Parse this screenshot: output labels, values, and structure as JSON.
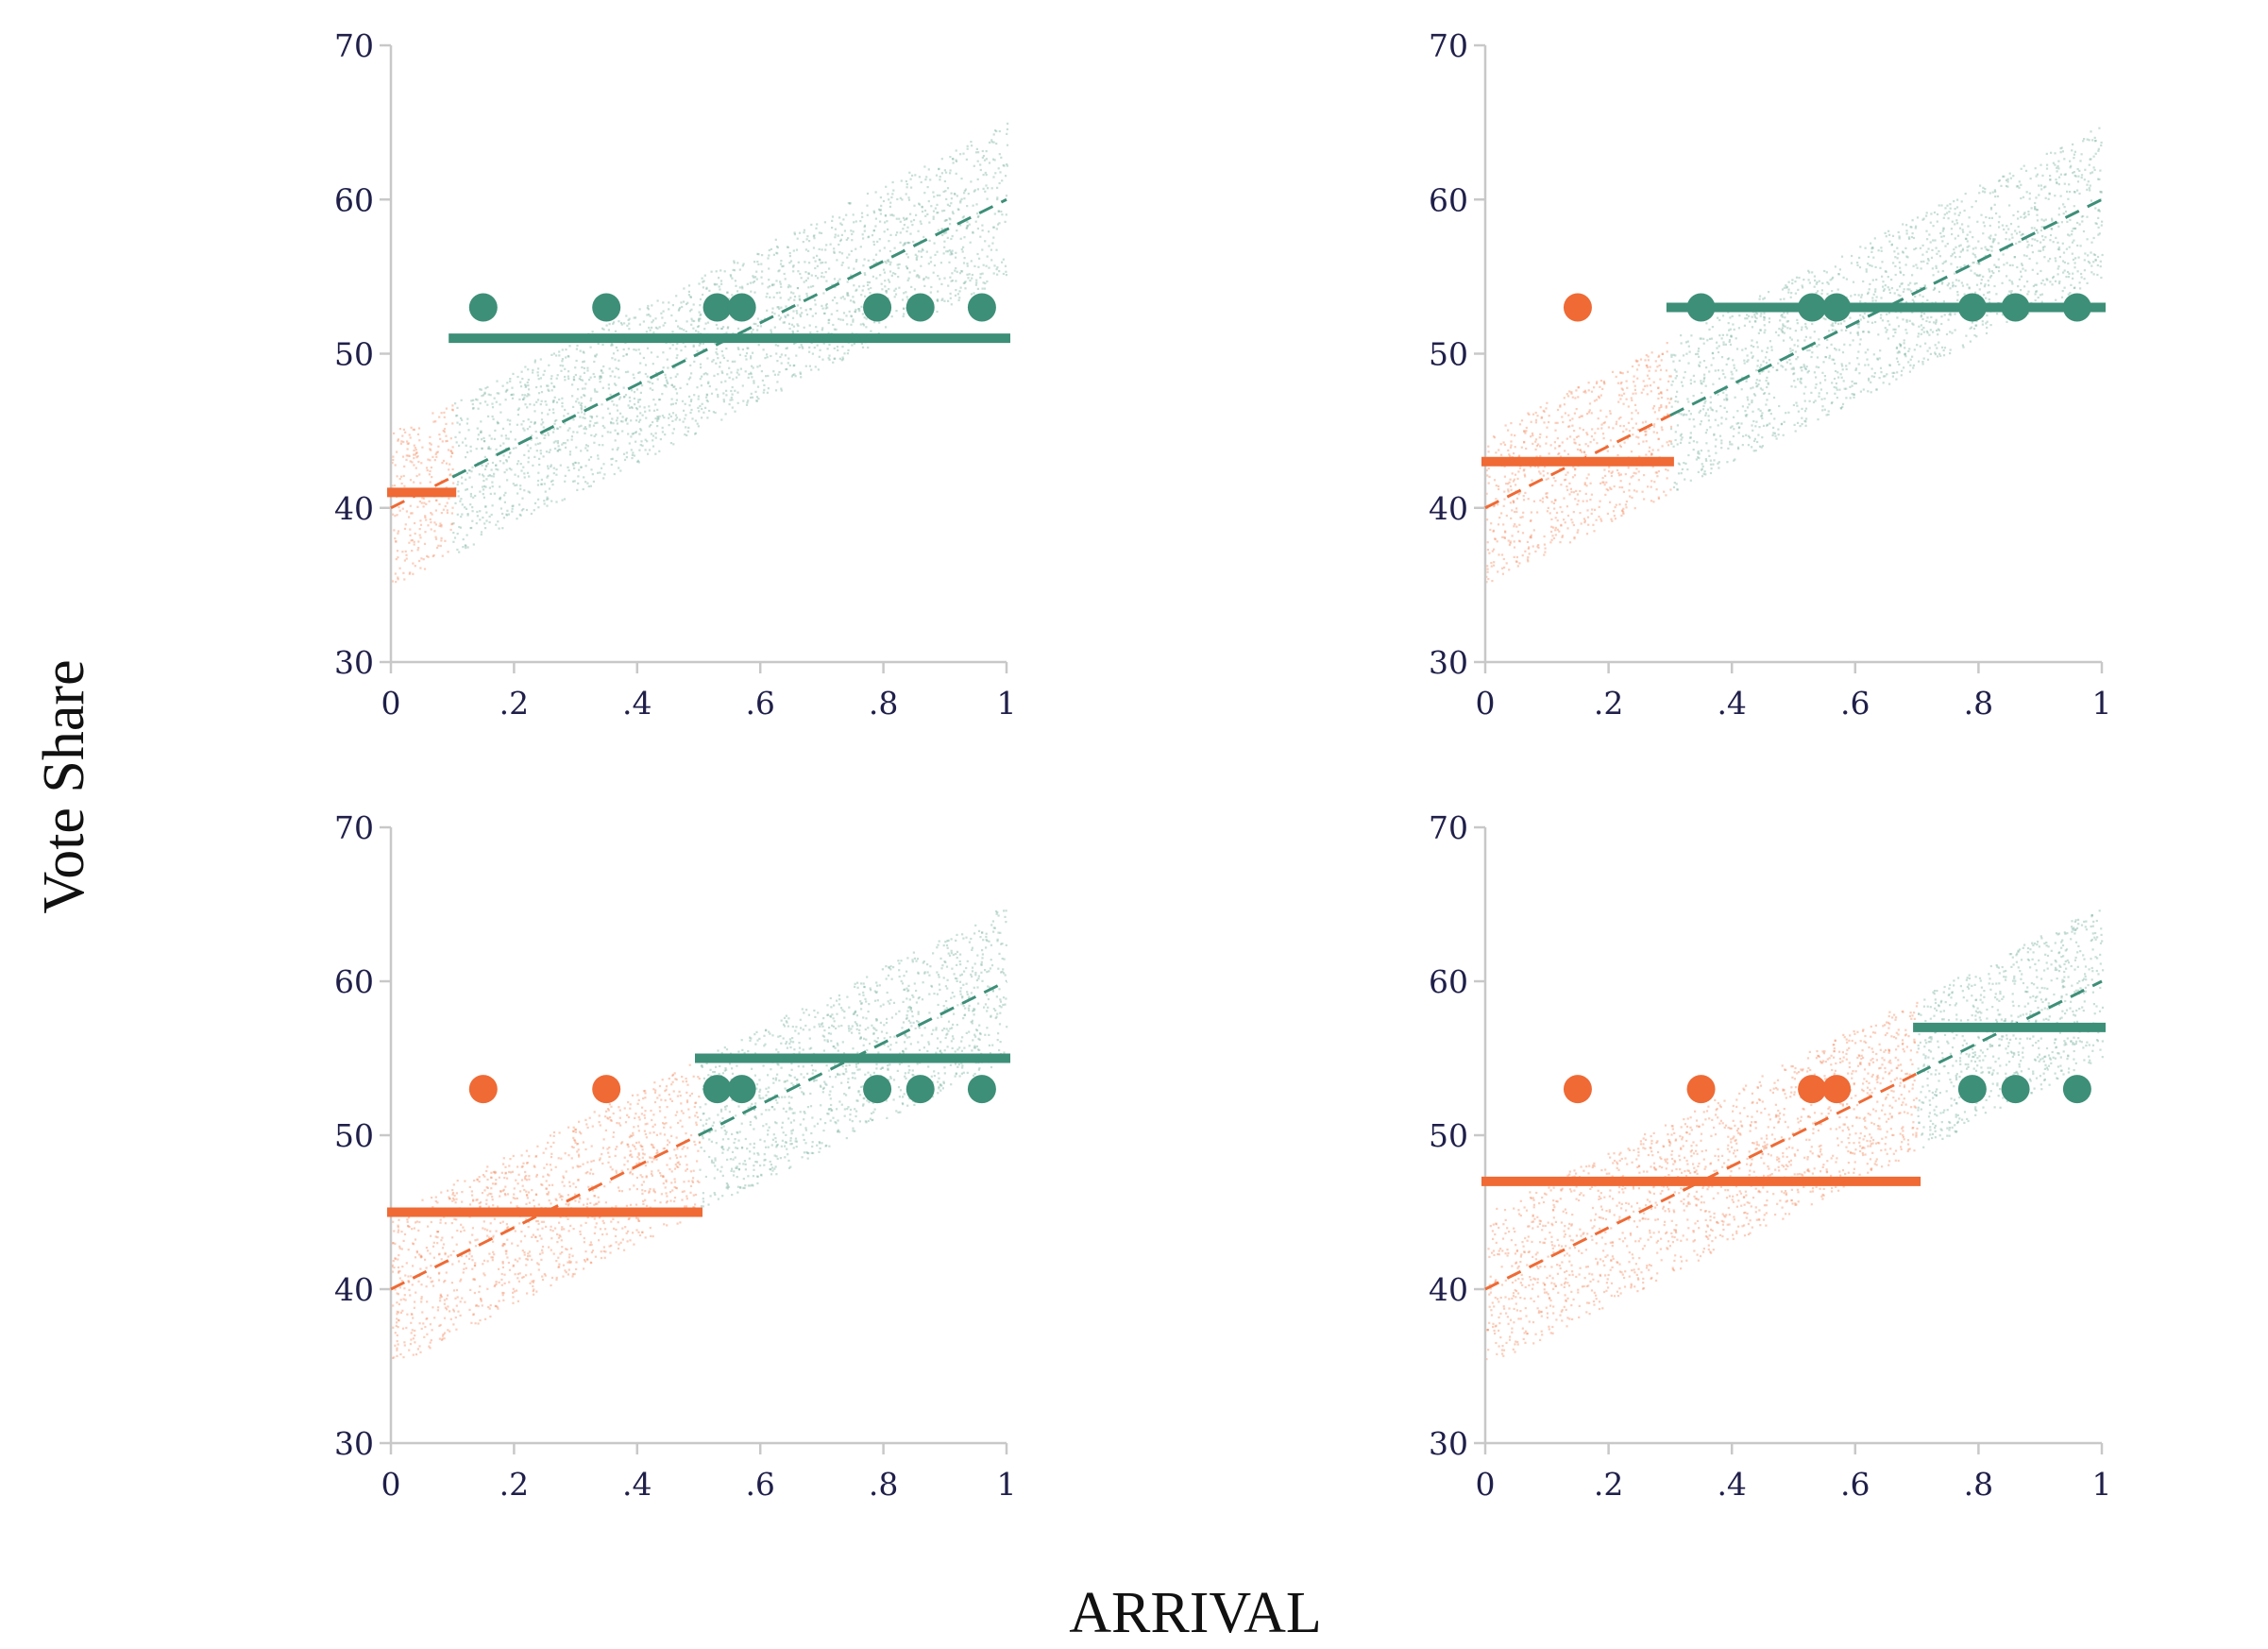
{
  "colors": {
    "red": "#ef6a35",
    "green": "#3d8f78",
    "red_cloud": "#f3936a",
    "green_cloud": "#86b9a8"
  },
  "axes_titles": {
    "xlabel": "ARRIVAL",
    "ylabel": "Vote Share"
  },
  "chart_data": [
    {
      "type": "scatter",
      "panel": "top-left",
      "xlim": [
        0,
        1
      ],
      "ylim": [
        30,
        70
      ],
      "x_tick_values": [
        0,
        0.2,
        0.4,
        0.6,
        0.8,
        1
      ],
      "x_tick_labels": [
        "0",
        ".2",
        ".4",
        ".6",
        ".8",
        "1"
      ],
      "y_tick_values": [
        30,
        40,
        50,
        60,
        70
      ],
      "y_tick_labels": [
        "30",
        "40",
        "50",
        "60",
        "70"
      ],
      "threshold": 0.1,
      "trend_line": {
        "x": [
          0,
          1
        ],
        "y": [
          40,
          60
        ],
        "style": "dashed"
      },
      "mean_lines": [
        {
          "group": "red",
          "x": [
            0,
            0.1
          ],
          "y": 41
        },
        {
          "group": "green",
          "x": [
            0.1,
            1
          ],
          "y": 51
        }
      ],
      "points": [
        {
          "x": 0.15,
          "y": 53,
          "group": "green"
        },
        {
          "x": 0.35,
          "y": 53,
          "group": "green"
        },
        {
          "x": 0.53,
          "y": 53,
          "group": "green"
        },
        {
          "x": 0.57,
          "y": 53,
          "group": "green"
        },
        {
          "x": 0.79,
          "y": 53,
          "group": "green"
        },
        {
          "x": 0.86,
          "y": 53,
          "group": "green"
        },
        {
          "x": 0.96,
          "y": 53,
          "group": "green"
        }
      ]
    },
    {
      "type": "scatter",
      "panel": "top-right",
      "xlim": [
        0,
        1
      ],
      "ylim": [
        30,
        70
      ],
      "x_tick_values": [
        0,
        0.2,
        0.4,
        0.6,
        0.8,
        1
      ],
      "x_tick_labels": [
        "0",
        ".2",
        ".4",
        ".6",
        ".8",
        "1"
      ],
      "y_tick_values": [
        30,
        40,
        50,
        60,
        70
      ],
      "y_tick_labels": [
        "30",
        "40",
        "50",
        "60",
        "70"
      ],
      "threshold": 0.3,
      "trend_line": {
        "x": [
          0,
          1
        ],
        "y": [
          40,
          60
        ],
        "style": "dashed"
      },
      "mean_lines": [
        {
          "group": "red",
          "x": [
            0,
            0.3
          ],
          "y": 43
        },
        {
          "group": "green",
          "x": [
            0.3,
            1
          ],
          "y": 53
        }
      ],
      "points": [
        {
          "x": 0.15,
          "y": 53,
          "group": "red"
        },
        {
          "x": 0.35,
          "y": 53,
          "group": "green"
        },
        {
          "x": 0.53,
          "y": 53,
          "group": "green"
        },
        {
          "x": 0.57,
          "y": 53,
          "group": "green"
        },
        {
          "x": 0.79,
          "y": 53,
          "group": "green"
        },
        {
          "x": 0.86,
          "y": 53,
          "group": "green"
        },
        {
          "x": 0.96,
          "y": 53,
          "group": "green"
        }
      ]
    },
    {
      "type": "scatter",
      "panel": "bottom-left",
      "xlim": [
        0,
        1
      ],
      "ylim": [
        30,
        70
      ],
      "x_tick_values": [
        0,
        0.2,
        0.4,
        0.6,
        0.8,
        1
      ],
      "x_tick_labels": [
        "0",
        ".2",
        ".4",
        ".6",
        ".8",
        "1"
      ],
      "y_tick_values": [
        30,
        40,
        50,
        60,
        70
      ],
      "y_tick_labels": [
        "30",
        "40",
        "50",
        "60",
        "70"
      ],
      "threshold": 0.5,
      "trend_line": {
        "x": [
          0,
          1
        ],
        "y": [
          40,
          60
        ],
        "style": "dashed"
      },
      "mean_lines": [
        {
          "group": "red",
          "x": [
            0,
            0.5
          ],
          "y": 45
        },
        {
          "group": "green",
          "x": [
            0.5,
            1
          ],
          "y": 55
        }
      ],
      "points": [
        {
          "x": 0.15,
          "y": 53,
          "group": "red"
        },
        {
          "x": 0.35,
          "y": 53,
          "group": "red"
        },
        {
          "x": 0.53,
          "y": 53,
          "group": "green"
        },
        {
          "x": 0.57,
          "y": 53,
          "group": "green"
        },
        {
          "x": 0.79,
          "y": 53,
          "group": "green"
        },
        {
          "x": 0.86,
          "y": 53,
          "group": "green"
        },
        {
          "x": 0.96,
          "y": 53,
          "group": "green"
        }
      ]
    },
    {
      "type": "scatter",
      "panel": "bottom-right",
      "xlim": [
        0,
        1
      ],
      "ylim": [
        30,
        70
      ],
      "x_tick_values": [
        0,
        0.2,
        0.4,
        0.6,
        0.8,
        1
      ],
      "x_tick_labels": [
        "0",
        ".2",
        ".4",
        ".6",
        ".8",
        "1"
      ],
      "y_tick_values": [
        30,
        40,
        50,
        60,
        70
      ],
      "y_tick_labels": [
        "30",
        "40",
        "50",
        "60",
        "70"
      ],
      "threshold": 0.7,
      "trend_line": {
        "x": [
          0,
          1
        ],
        "y": [
          40,
          60
        ],
        "style": "dashed"
      },
      "mean_lines": [
        {
          "group": "red",
          "x": [
            0,
            0.7
          ],
          "y": 47
        },
        {
          "group": "green",
          "x": [
            0.7,
            1
          ],
          "y": 57
        }
      ],
      "points": [
        {
          "x": 0.15,
          "y": 53,
          "group": "red"
        },
        {
          "x": 0.35,
          "y": 53,
          "group": "red"
        },
        {
          "x": 0.53,
          "y": 53,
          "group": "red"
        },
        {
          "x": 0.57,
          "y": 53,
          "group": "red"
        },
        {
          "x": 0.79,
          "y": 53,
          "group": "green"
        },
        {
          "x": 0.86,
          "y": 53,
          "group": "green"
        },
        {
          "x": 0.96,
          "y": 53,
          "group": "green"
        }
      ]
    }
  ]
}
